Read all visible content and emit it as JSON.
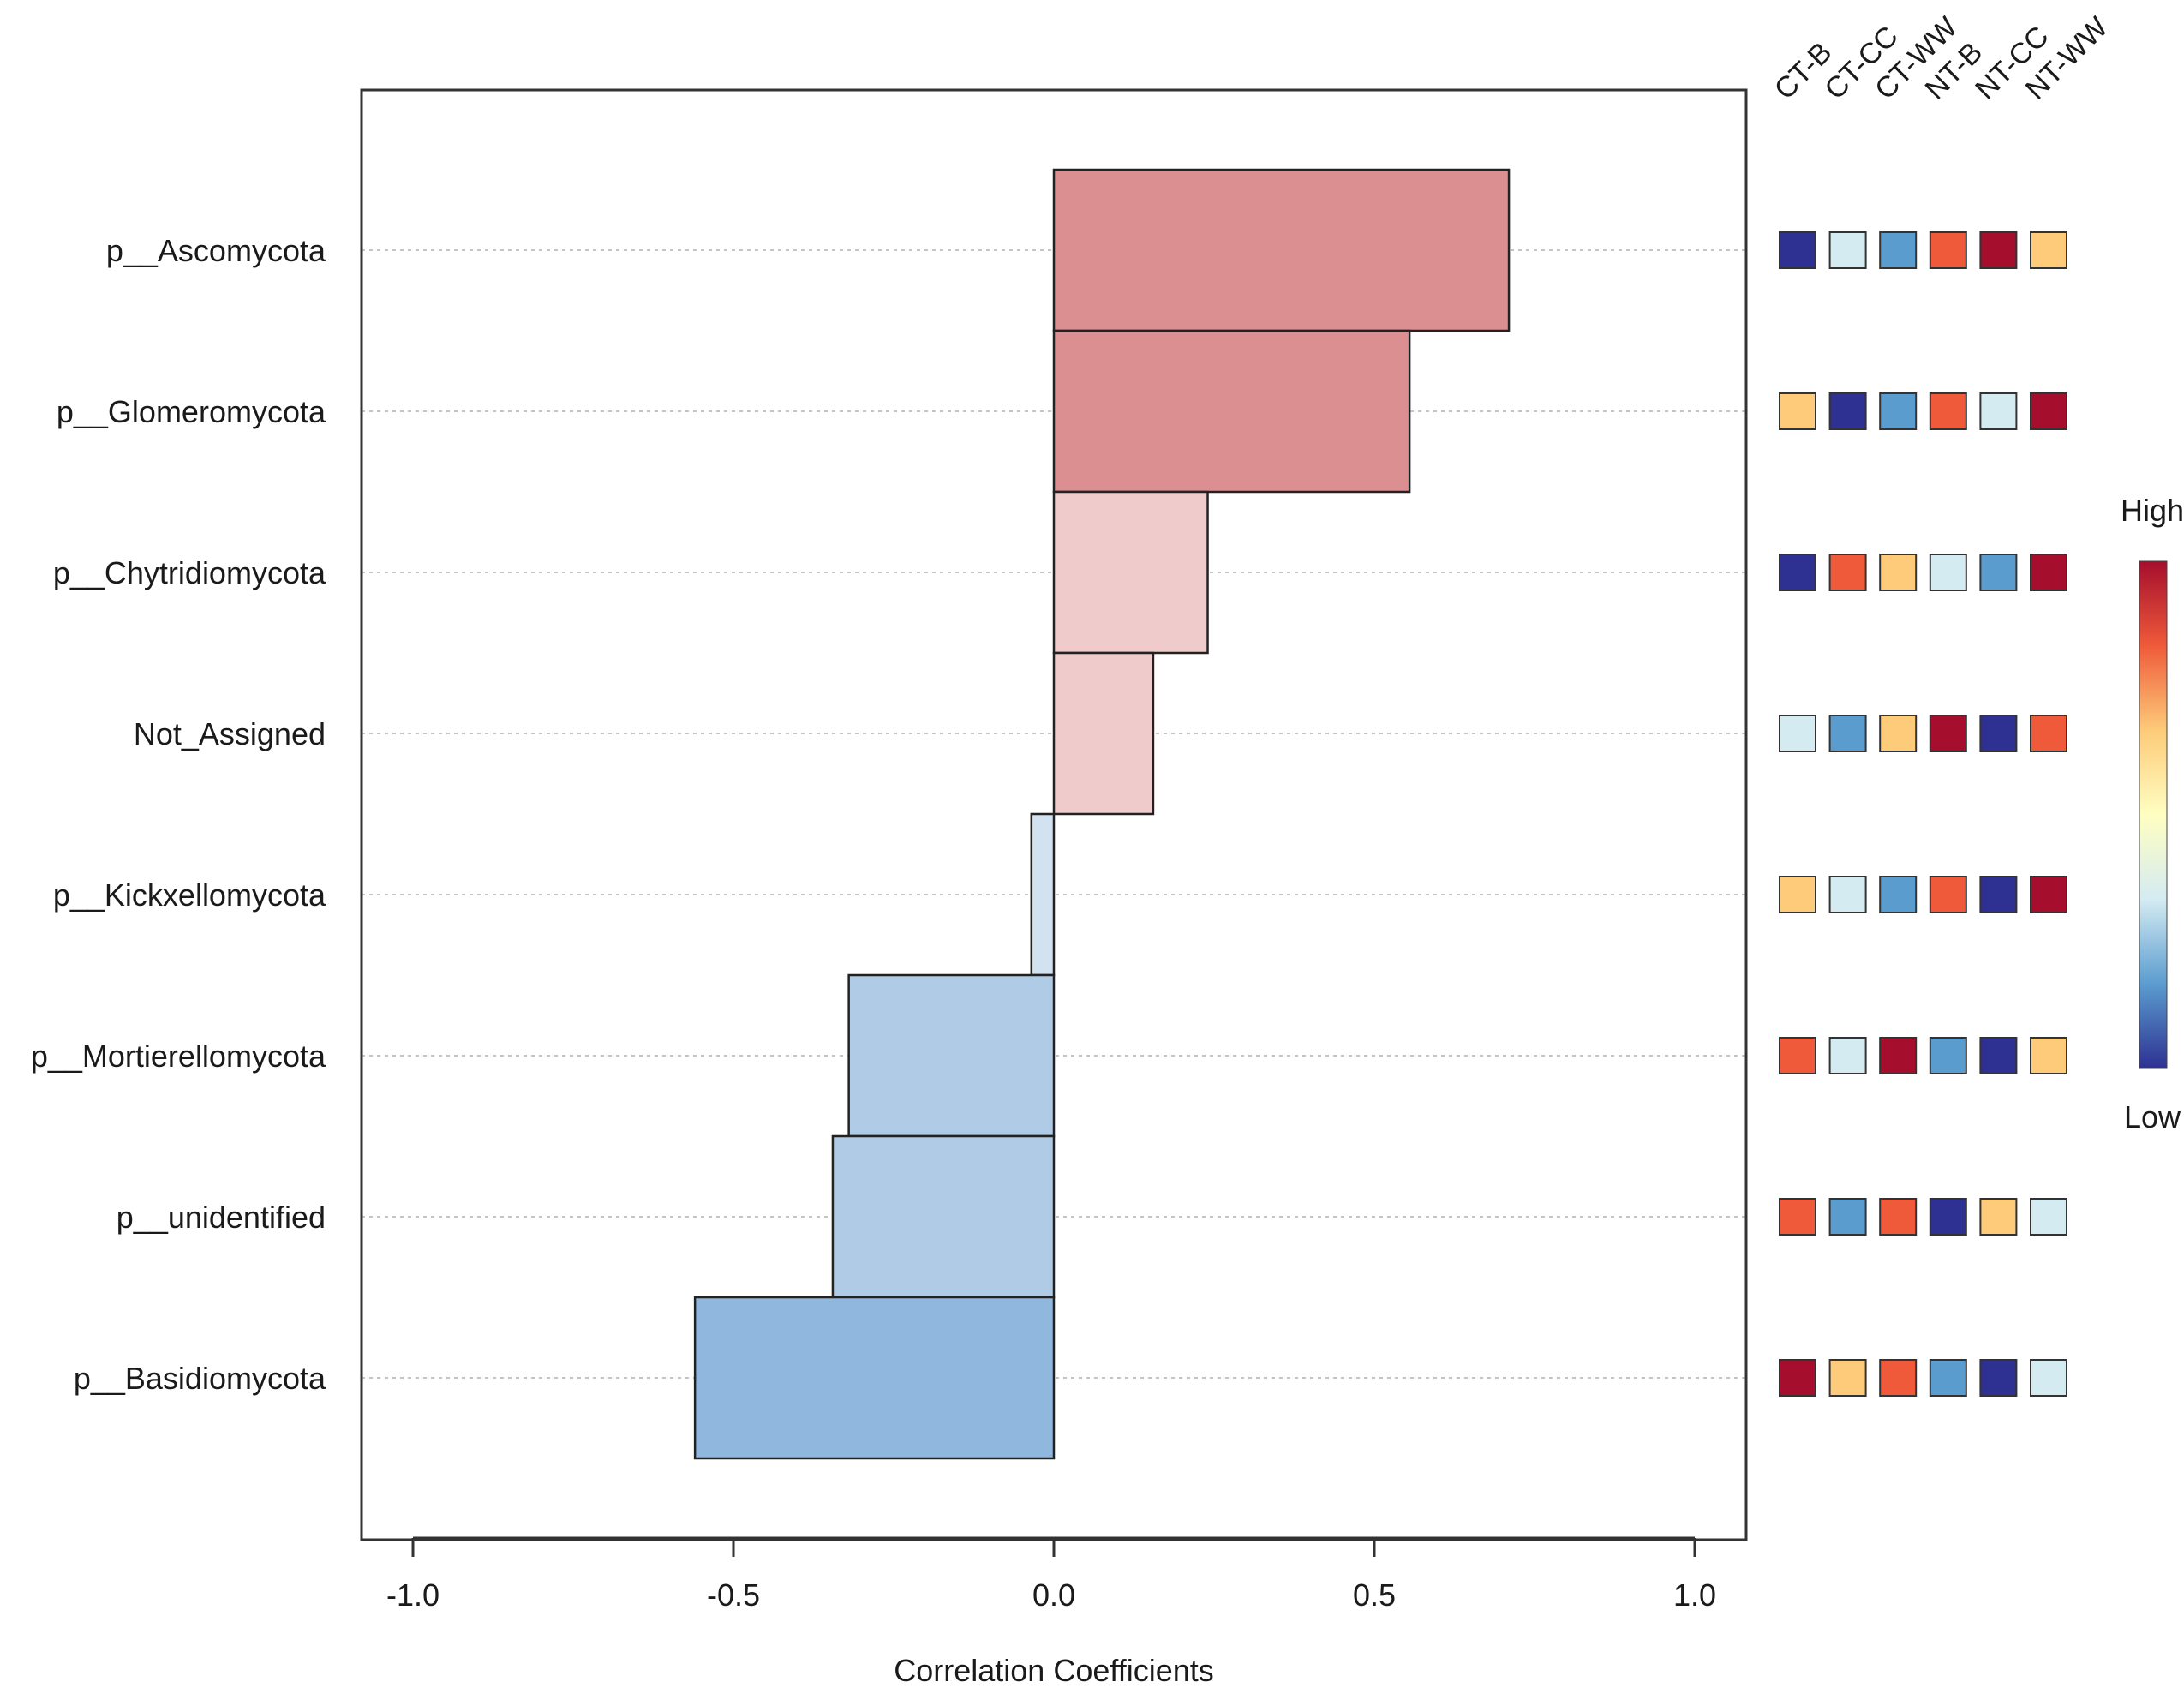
{
  "chart_data": {
    "type": "bar",
    "orientation": "horizontal",
    "xlabel": "Correlation Coefficients",
    "xlim": [
      -1.08,
      1.08
    ],
    "xticks": [
      -1.0,
      -0.5,
      0.0,
      0.5,
      1.0
    ],
    "xtick_labels": [
      "-1.0",
      "-0.5",
      "0.0",
      "0.5",
      "1.0"
    ],
    "categories": [
      "p__Ascomycota",
      "p__Glomeromycota",
      "p__Chytridiomycota",
      "Not_Assigned",
      "p__Kickxellomycota",
      "p__Mortierellomycota",
      "p__unidentified",
      "p__Basidiomycota"
    ],
    "values": [
      0.71,
      0.555,
      0.24,
      0.155,
      -0.035,
      -0.32,
      -0.345,
      -0.56
    ],
    "bar_colors": [
      "#dc8f91",
      "#dc8f91",
      "#f0cbcc",
      "#f0cbcc",
      "#d3e2f1",
      "#afcbe5",
      "#afcbe5",
      "#90b8de"
    ],
    "heatmap": {
      "columns": [
        "CT-B",
        "CT-CC",
        "CT-WW",
        "NT-B",
        "NT-CC",
        "NT-WW"
      ],
      "cells": [
        [
          "#2e3192",
          "#d4ebf2",
          "#5b9ccf",
          "#ef5a3a",
          "#a50e2d",
          "#fdcb79"
        ],
        [
          "#fdcb79",
          "#2e3192",
          "#5b9ccf",
          "#ef5a3a",
          "#d4ebf2",
          "#a50e2d"
        ],
        [
          "#2e3192",
          "#ef5a3a",
          "#fdcb79",
          "#d4ebf2",
          "#5b9ccf",
          "#a50e2d"
        ],
        [
          "#d4ebf2",
          "#5b9ccf",
          "#fdcb79",
          "#a50e2d",
          "#2e3192",
          "#ef5a3a"
        ],
        [
          "#fdcb79",
          "#d4ebf2",
          "#5b9ccf",
          "#ef5a3a",
          "#2e3192",
          "#a50e2d"
        ],
        [
          "#ef5a3a",
          "#d4ebf2",
          "#a50e2d",
          "#5b9ccf",
          "#2e3192",
          "#fdcb79"
        ],
        [
          "#ef5a3a",
          "#5b9ccf",
          "#ef5a3a",
          "#2e3192",
          "#fdcb79",
          "#d4ebf2"
        ],
        [
          "#a50e2d",
          "#fdcb79",
          "#ef5a3a",
          "#5b9ccf",
          "#2e3192",
          "#d4ebf2"
        ]
      ]
    },
    "legend": {
      "high_label": "High",
      "low_label": "Low",
      "gradient": [
        "#a50e2d",
        "#ef5a3a",
        "#fdcb79",
        "#fffec2",
        "#d4ebf2",
        "#5b9ccf",
        "#2e3192"
      ]
    }
  }
}
